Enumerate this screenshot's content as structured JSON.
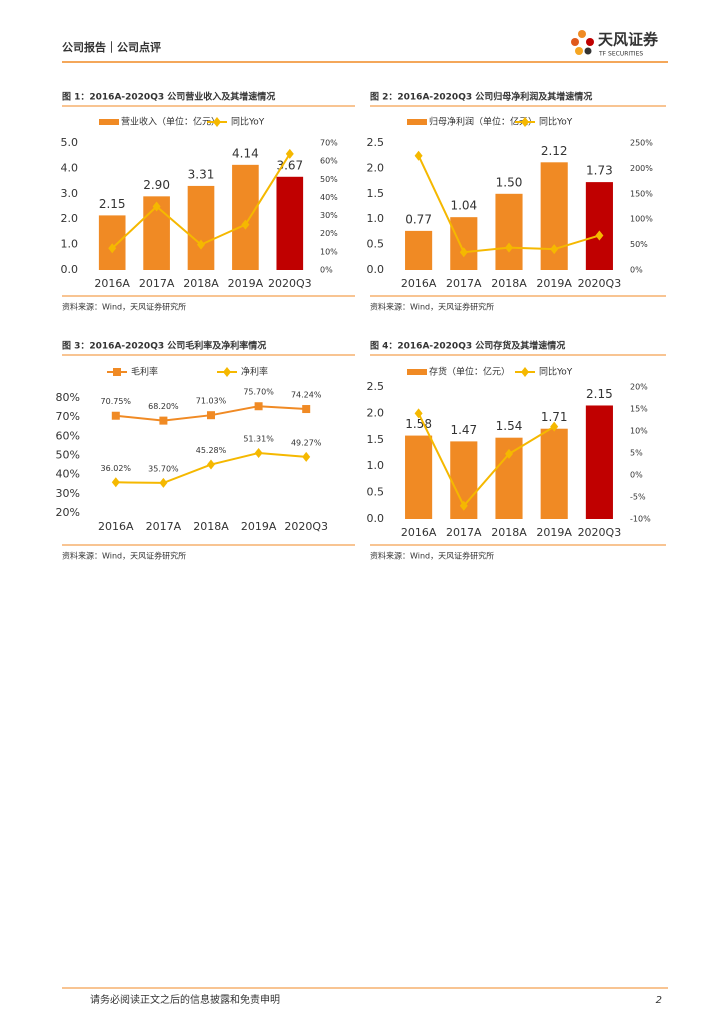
{
  "header": {
    "section": "公司报告｜公司点评",
    "logo_name": "天风证券",
    "logo_en": "TF SECURITIES"
  },
  "chart_data": [
    {
      "type": "bar",
      "title": "图 1：2016A-2020Q3 公司营业收入及其增速情况",
      "source": "资料来源：Wind，天风证券研究所",
      "categories": [
        "2016A",
        "2017A",
        "2018A",
        "2019A",
        "2020Q3"
      ],
      "series": [
        {
          "name": "营业收入（单位：亿元）",
          "type": "bar",
          "color": "#f08a24",
          "colors": [
            "#f08a24",
            "#f08a24",
            "#f08a24",
            "#f08a24",
            "#c00000"
          ],
          "values": [
            2.15,
            2.9,
            3.31,
            4.14,
            3.67
          ],
          "value_labels": [
            "2.15",
            "2.90",
            "3.31",
            "4.14",
            "3.67"
          ]
        },
        {
          "name": "同比YoY",
          "type": "line",
          "axis": "y2",
          "color": "#f5b800",
          "marker": "diamond",
          "values": [
            12,
            35,
            14,
            25,
            64
          ]
        }
      ],
      "ylim": [
        0,
        5
      ],
      "yticks": [
        {
          "value": 0,
          "label": "0.0"
        },
        {
          "value": 1,
          "label": "1.0"
        },
        {
          "value": 2,
          "label": "2.0"
        },
        {
          "value": 3,
          "label": "3.0"
        },
        {
          "value": 4,
          "label": "4.0"
        },
        {
          "value": 5,
          "label": "5.0"
        }
      ],
      "y2lim": [
        0,
        70
      ],
      "y2ticks": [
        {
          "value": 0,
          "label": "0%"
        },
        {
          "value": 10,
          "label": "10%"
        },
        {
          "value": 20,
          "label": "20%"
        },
        {
          "value": 30,
          "label": "30%"
        },
        {
          "value": 40,
          "label": "40%"
        },
        {
          "value": 50,
          "label": "50%"
        },
        {
          "value": 60,
          "label": "60%"
        },
        {
          "value": 70,
          "label": "70%"
        }
      ],
      "grid": false
    },
    {
      "type": "bar",
      "title": "图 2：2016A-2020Q3 公司归母净利润及其增速情况",
      "source": "资料来源：Wind，天风证券研究所",
      "categories": [
        "2016A",
        "2017A",
        "2018A",
        "2019A",
        "2020Q3"
      ],
      "series": [
        {
          "name": "归母净利润（单位：亿元）",
          "type": "bar",
          "color": "#f08a24",
          "colors": [
            "#f08a24",
            "#f08a24",
            "#f08a24",
            "#f08a24",
            "#c00000"
          ],
          "values": [
            0.77,
            1.04,
            1.5,
            2.12,
            1.73
          ],
          "value_labels": [
            "0.77",
            "1.04",
            "1.50",
            "2.12",
            "1.73"
          ]
        },
        {
          "name": "同比YoY",
          "type": "line",
          "axis": "y2",
          "color": "#f5b800",
          "marker": "diamond",
          "values": [
            225,
            35,
            44,
            41,
            68
          ]
        }
      ],
      "ylim": [
        0,
        2.5
      ],
      "yticks": [
        {
          "value": 0,
          "label": "0.0"
        },
        0.5,
        {
          "value": 1,
          "label": "1.0"
        },
        1.5,
        {
          "value": 2,
          "label": "2.0"
        },
        2.5
      ],
      "y2lim": [
        0,
        250
      ],
      "y2ticks": [
        {
          "value": 0,
          "label": "0%"
        },
        {
          "value": 50,
          "label": "50%"
        },
        {
          "value": 100,
          "label": "100%"
        },
        {
          "value": 150,
          "label": "150%"
        },
        {
          "value": 200,
          "label": "200%"
        },
        {
          "value": 250,
          "label": "250%"
        }
      ],
      "grid": false
    },
    {
      "type": "line",
      "title": "图 3：2016A-2020Q3 公司毛利率及净利率情况",
      "source": "资料来源：Wind，天风证券研究所",
      "categories": [
        "2016A",
        "2017A",
        "2018A",
        "2019A",
        "2020Q3"
      ],
      "series": [
        {
          "name": "毛利率",
          "type": "line",
          "color": "#f08a24",
          "marker": "square",
          "values": [
            70.75,
            68.2,
            71.03,
            75.7,
            74.24
          ],
          "value_labels": [
            "70.75%",
            "68.20%",
            "71.03%",
            "75.70%",
            "74.24%"
          ]
        },
        {
          "name": "净利率",
          "type": "line",
          "color": "#f5b800",
          "marker": "diamond",
          "values": [
            36.02,
            35.7,
            45.28,
            51.31,
            49.27
          ],
          "value_labels": [
            "36.02%",
            "35.70%",
            "45.28%",
            "51.31%",
            "49.27%"
          ]
        }
      ],
      "ylim": [
        20,
        80
      ],
      "yticks": [
        {
          "value": 20,
          "label": "20%"
        },
        {
          "value": 30,
          "label": "30%"
        },
        {
          "value": 40,
          "label": "40%"
        },
        {
          "value": 50,
          "label": "50%"
        },
        {
          "value": 60,
          "label": "60%"
        },
        {
          "value": 70,
          "label": "70%"
        },
        {
          "value": 80,
          "label": "80%"
        }
      ],
      "grid": false
    },
    {
      "type": "bar",
      "title": "图 4：2016A-2020Q3 公司存货及其增速情况",
      "source": "资料来源：Wind，天风证券研究所",
      "categories": [
        "2016A",
        "2017A",
        "2018A",
        "2019A",
        "2020Q3"
      ],
      "series": [
        {
          "name": "存货（单位：亿元）",
          "type": "bar",
          "color": "#f08a24",
          "colors": [
            "#f08a24",
            "#f08a24",
            "#f08a24",
            "#f08a24",
            "#c00000"
          ],
          "values": [
            1.58,
            1.47,
            1.54,
            1.71,
            2.15
          ],
          "value_labels": [
            "1.58",
            "1.47",
            "1.54",
            "1.71",
            "2.15"
          ]
        },
        {
          "name": "同比YoY",
          "type": "line",
          "axis": "y2",
          "color": "#f5b800",
          "marker": "diamond",
          "values": [
            14,
            -7,
            4.8,
            11,
            null
          ]
        }
      ],
      "ylim": [
        0,
        2.5
      ],
      "yticks": [
        {
          "value": 0,
          "label": "0.0"
        },
        0.5,
        {
          "value": 1,
          "label": "1.0"
        },
        1.5,
        {
          "value": 2,
          "label": "2.0"
        },
        2.5
      ],
      "y2lim": [
        -10,
        20
      ],
      "y2ticks": [
        {
          "value": -10,
          "label": "-10%"
        },
        {
          "value": -5,
          "label": "-5%"
        },
        {
          "value": 0,
          "label": "0%"
        },
        {
          "value": 5,
          "label": "5%"
        },
        {
          "value": 10,
          "label": "10%"
        },
        {
          "value": 15,
          "label": "15%"
        },
        {
          "value": 20,
          "label": "20%"
        }
      ],
      "grid": false
    }
  ],
  "footer": {
    "disclaimer": "请务必阅读正文之后的信息披露和免责申明",
    "page": "2"
  }
}
